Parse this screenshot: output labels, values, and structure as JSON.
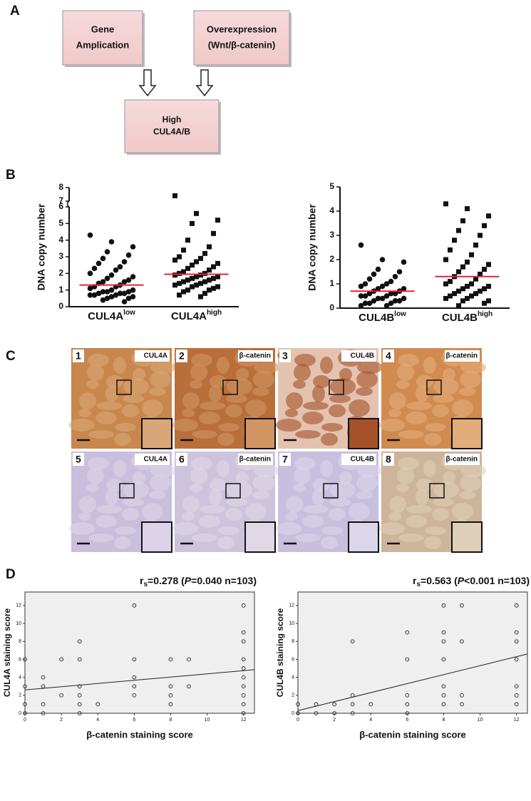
{
  "panel_labels": [
    "A",
    "B",
    "C",
    "D"
  ],
  "diagram": {
    "nodes": [
      {
        "lines": [
          "Gene",
          "Amplication"
        ]
      },
      {
        "lines": [
          "Overexpression",
          "(Wnt/β-catenin)"
        ]
      },
      {
        "lines": [
          "High",
          "CUL4A/B"
        ]
      }
    ]
  },
  "micrographs": [
    {
      "number": "1",
      "label": "CUL4A"
    },
    {
      "number": "2",
      "label": "β-catenin"
    },
    {
      "number": "3",
      "label": "CUL4B"
    },
    {
      "number": "4",
      "label": "β-catenin"
    },
    {
      "number": "5",
      "label": "CUL4A"
    },
    {
      "number": "6",
      "label": "β-catenin"
    },
    {
      "number": "7",
      "label": "CUL4B"
    },
    {
      "number": "8",
      "label": "β-catenin"
    }
  ],
  "chart_data": [
    {
      "type": "strip",
      "y_label": "DNA copy number",
      "categories": [
        "CUL4A",
        "CUL4A"
      ],
      "category_superscripts": [
        "low",
        "high"
      ],
      "markers": [
        "circle",
        "square"
      ],
      "mean_color": "#e8213a",
      "ylim": [
        0,
        8
      ],
      "yticks": [
        0,
        1,
        2,
        3,
        4,
        5,
        6,
        7,
        8
      ],
      "axis_break": [
        6,
        7
      ],
      "groups": [
        [
          4.3,
          3.9,
          3.6,
          3.3,
          3.1,
          2.9,
          2.7,
          2.6,
          2.4,
          2.3,
          2.2,
          2.0,
          1.9,
          1.8,
          1.7,
          1.6,
          1.5,
          1.5,
          1.4,
          1.3,
          1.2,
          1.2,
          1.1,
          1.0,
          1.0,
          0.9,
          0.9,
          0.9,
          0.8,
          0.8,
          0.8,
          0.7,
          0.7,
          0.7,
          0.6,
          0.6,
          0.5,
          0.5,
          0.4,
          0.3
        ],
        [
          7.4,
          5.6,
          5.2,
          5.0,
          4.4,
          4.0,
          3.6,
          3.4,
          3.2,
          3.0,
          2.9,
          2.8,
          2.7,
          2.6,
          2.5,
          2.4,
          2.3,
          2.2,
          2.1,
          2.0,
          2.0,
          1.9,
          1.9,
          1.8,
          1.8,
          1.7,
          1.7,
          1.6,
          1.6,
          1.5,
          1.5,
          1.4,
          1.4,
          1.3,
          1.3,
          1.2,
          1.2,
          1.1,
          1.0,
          1.0,
          0.9,
          0.8,
          0.7,
          0.6
        ]
      ],
      "means": [
        1.3,
        1.95
      ]
    },
    {
      "type": "strip",
      "y_label": "DNA copy number",
      "categories": [
        "CUL4B",
        "CUL4B"
      ],
      "category_superscripts": [
        "low",
        "high"
      ],
      "markers": [
        "circle",
        "square"
      ],
      "mean_color": "#e8213a",
      "ylim": [
        0,
        5
      ],
      "yticks": [
        0,
        1,
        2,
        3,
        4,
        5
      ],
      "groups": [
        [
          2.6,
          2.0,
          1.9,
          1.6,
          1.5,
          1.4,
          1.3,
          1.2,
          1.1,
          1.0,
          1.0,
          0.9,
          0.9,
          0.8,
          0.8,
          0.7,
          0.7,
          0.6,
          0.6,
          0.6,
          0.5,
          0.5,
          0.5,
          0.4,
          0.4,
          0.4,
          0.3,
          0.3,
          0.3,
          0.2,
          0.2,
          0.2,
          0.1,
          0.1
        ],
        [
          4.3,
          4.1,
          3.8,
          3.6,
          3.4,
          3.2,
          3.0,
          2.8,
          2.6,
          2.4,
          2.2,
          2.0,
          1.9,
          1.8,
          1.7,
          1.6,
          1.5,
          1.4,
          1.3,
          1.2,
          1.1,
          1.0,
          1.0,
          0.9,
          0.9,
          0.8,
          0.8,
          0.7,
          0.7,
          0.6,
          0.6,
          0.5,
          0.5,
          0.4,
          0.4,
          0.3,
          0.3,
          0.2,
          0.1
        ]
      ],
      "means": [
        0.7,
        1.3
      ]
    },
    {
      "type": "scatter",
      "x_label": "β-catenin staining score",
      "y_label": "CUL4A staining score",
      "annotation": [
        "r",
        "s",
        "=0.278 (",
        "P",
        "=0.040 n=103)"
      ],
      "xlim": [
        0,
        12.6
      ],
      "ylim": [
        0,
        13.5
      ],
      "xticks": [
        0,
        2,
        4,
        6,
        8,
        10,
        12
      ],
      "yticks": [
        0,
        2,
        4,
        6,
        8,
        10,
        12
      ],
      "x": [
        0,
        0,
        0,
        0,
        1,
        1,
        1,
        1,
        2,
        2,
        3,
        3,
        3,
        3,
        3,
        3,
        4,
        6,
        6,
        6,
        6,
        6,
        8,
        8,
        8,
        8,
        9,
        9,
        12,
        12,
        12,
        12,
        12,
        12,
        12,
        12,
        12,
        12
      ],
      "y": [
        0,
        1,
        3,
        6,
        0,
        1,
        3,
        4,
        2,
        6,
        0,
        1,
        2,
        3,
        6,
        8,
        1,
        2,
        3,
        4,
        6,
        12,
        1,
        2,
        3,
        6,
        3,
        6,
        0,
        1,
        2,
        3,
        4,
        5,
        6,
        8,
        9,
        12
      ],
      "fit_line": {
        "x": [
          0,
          12.6
        ],
        "y": [
          2.6,
          4.85
        ]
      }
    },
    {
      "type": "scatter",
      "x_label": "β-catenin staining score",
      "y_label": "CUL4B staining score",
      "annotation": [
        "r",
        "s",
        "=0.563 (",
        "P",
        "<0.001 n=103)"
      ],
      "xlim": [
        0,
        12.6
      ],
      "ylim": [
        0,
        13.5
      ],
      "xticks": [
        0,
        2,
        4,
        6,
        8,
        10,
        12
      ],
      "yticks": [
        0,
        2,
        4,
        6,
        8,
        10,
        12
      ],
      "x": [
        0,
        0,
        1,
        1,
        2,
        2,
        3,
        3,
        3,
        3,
        4,
        6,
        6,
        6,
        6,
        6,
        8,
        8,
        8,
        8,
        8,
        8,
        8,
        9,
        9,
        9,
        9,
        12,
        12,
        12,
        12,
        12,
        12,
        12
      ],
      "y": [
        0,
        1,
        0,
        1,
        0,
        1,
        0,
        1,
        2,
        8,
        1,
        0,
        1,
        2,
        6,
        9,
        1,
        2,
        3,
        6,
        8,
        9,
        12,
        1,
        2,
        8,
        12,
        1,
        2,
        3,
        6,
        8,
        9,
        12
      ],
      "fit_line": {
        "x": [
          0,
          12.6
        ],
        "y": [
          0.3,
          6.6
        ]
      }
    }
  ]
}
